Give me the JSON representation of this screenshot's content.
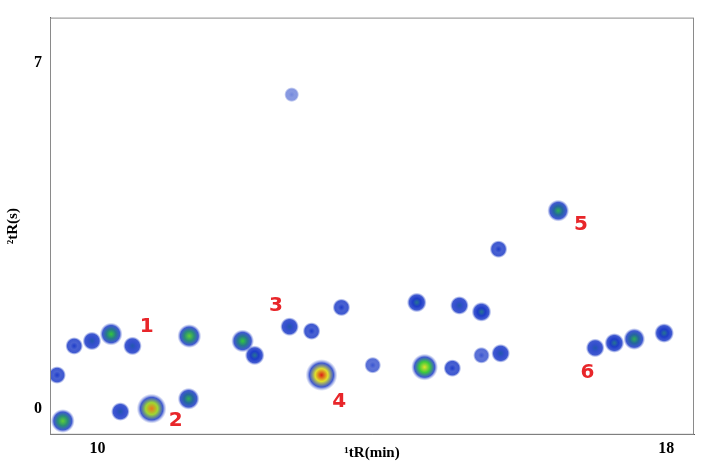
{
  "chart_data": {
    "type": "scatter",
    "xlabel": "¹tR(min)",
    "ylabel": "²tR(s)",
    "xlim": [
      9.33,
      18.39
    ],
    "ylim": [
      -0.53,
      7.92
    ],
    "xticks": [
      10,
      18
    ],
    "yticks": [
      0,
      7
    ],
    "grid": false,
    "x": [
      9.51,
      9.43,
      9.67,
      9.92,
      10.19,
      10.49,
      10.32,
      10.76,
      11.29,
      11.28,
      12.04,
      12.21,
      12.7,
      13.01,
      13.15,
      13.43,
      13.87,
      14.49,
      14.6,
      14.99,
      15.09,
      15.4,
      15.4,
      15.67,
      15.64,
      16.48,
      17.0,
      17.27,
      17.55,
      17.97,
      12.73
    ],
    "y": [
      -0.25,
      0.68,
      1.27,
      1.37,
      1.51,
      1.27,
      -0.06,
      0.0,
      1.47,
      0.2,
      1.37,
      1.08,
      1.66,
      1.57,
      0.68,
      2.05,
      0.88,
      2.15,
      0.84,
      0.82,
      2.09,
      1.96,
      1.08,
      1.12,
      3.23,
      4.01,
      1.23,
      1.33,
      1.41,
      1.53,
      6.36
    ],
    "intensity": [
      0.6,
      0.3,
      0.3,
      0.35,
      0.55,
      0.35,
      0.35,
      0.9,
      0.6,
      0.5,
      0.55,
      0.4,
      0.35,
      0.3,
      1.0,
      0.3,
      0.25,
      0.4,
      0.75,
      0.3,
      0.35,
      0.4,
      0.25,
      0.35,
      0.3,
      0.5,
      0.35,
      0.4,
      0.5,
      0.4,
      0.15
    ],
    "annotations": [
      {
        "text": "1",
        "x": 10.69,
        "y": 1.66,
        "color": "#e8262a"
      },
      {
        "text": "2",
        "x": 11.1,
        "y": -0.25,
        "color": "#e8262a"
      },
      {
        "text": "3",
        "x": 12.51,
        "y": 2.09,
        "color": "#e8262a"
      },
      {
        "text": "4",
        "x": 13.4,
        "y": 0.14,
        "color": "#e8262a"
      },
      {
        "text": "5",
        "x": 16.8,
        "y": 3.72,
        "color": "#e8262a"
      },
      {
        "text": "6",
        "x": 16.89,
        "y": 0.72,
        "color": "#e8262a"
      }
    ]
  }
}
